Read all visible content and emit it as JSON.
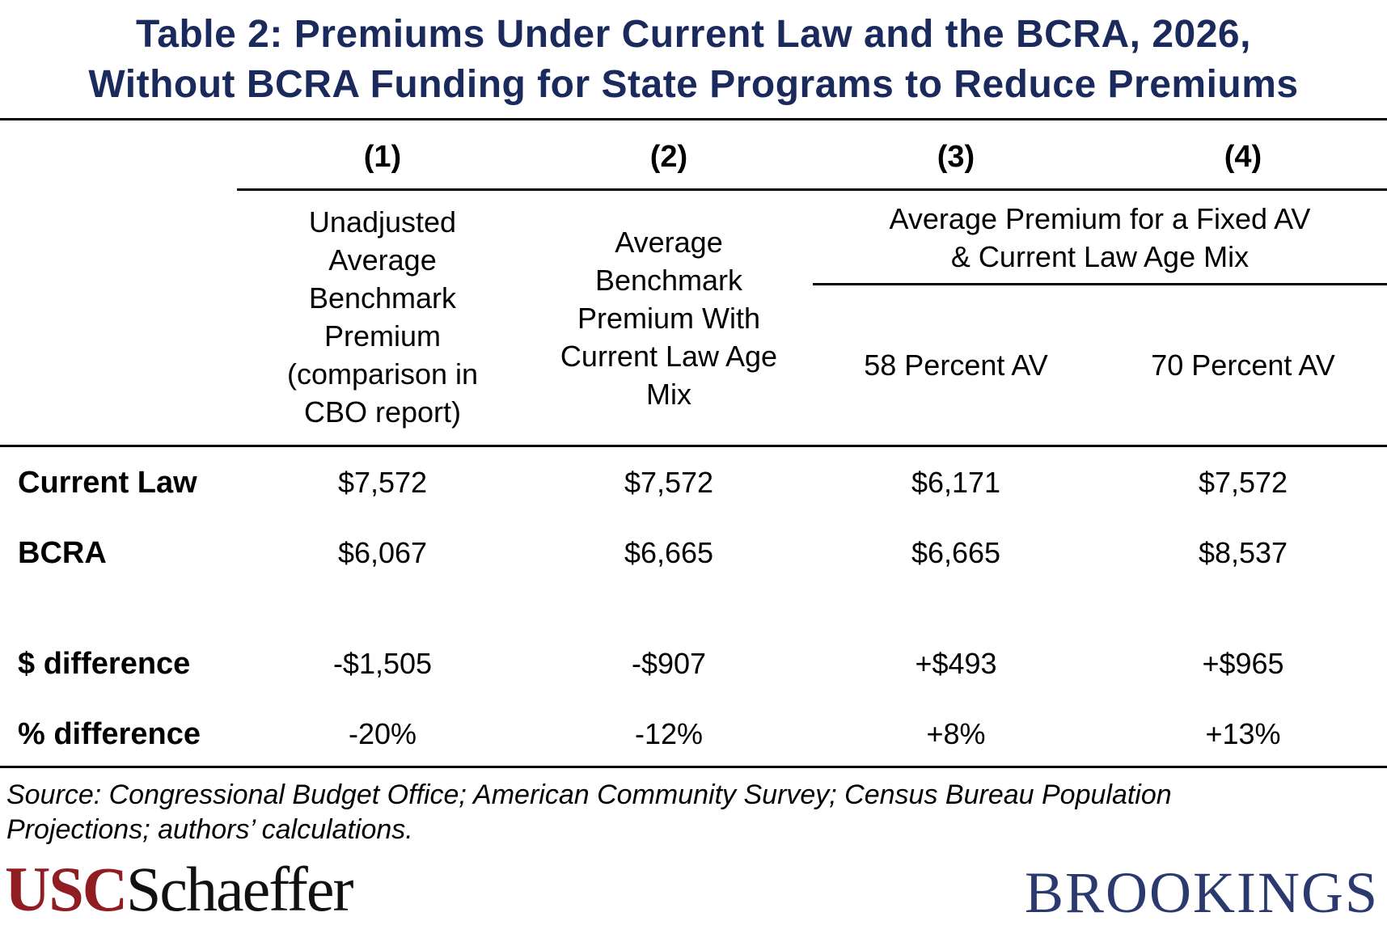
{
  "title": {
    "line1": "Table 2: Premiums Under Current Law and the BCRA, 2026,",
    "line2": "Without BCRA Funding for State Programs to Reduce Premiums"
  },
  "columns": {
    "numbers": [
      "(1)",
      "(2)",
      "(3)",
      "(4)"
    ],
    "col1_header": [
      "Unadjusted",
      "Average",
      "Benchmark",
      "Premium",
      "(comparison in",
      "CBO report)"
    ],
    "col2_header": [
      "Average",
      "Benchmark",
      "Premium With",
      "Current Law Age",
      "Mix"
    ],
    "group_header": [
      "Average Premium for a Fixed AV",
      "& Current Law Age Mix"
    ],
    "col3_header": "58 Percent AV",
    "col4_header": "70 Percent AV"
  },
  "rows": [
    {
      "label": "Current Law",
      "values": [
        "$7,572",
        "$7,572",
        "$6,171",
        "$7,572"
      ]
    },
    {
      "label": "BCRA",
      "values": [
        "$6,067",
        "$6,665",
        "$6,665",
        "$8,537"
      ]
    },
    {
      "label": "$ difference",
      "values": [
        "-$1,505",
        "-$907",
        "+$493",
        "+$965"
      ]
    },
    {
      "label": "% difference",
      "values": [
        "-20%",
        "-12%",
        "+8%",
        "+13%"
      ]
    }
  ],
  "source": {
    "line1": "Source: Congressional Budget Office; American Community Survey; Census Bureau Population",
    "line2": "Projections; authors’ calculations."
  },
  "logos": {
    "usc_part1": "USC",
    "usc_part2": "Schaeffer",
    "brookings": "BROOKINGS"
  }
}
